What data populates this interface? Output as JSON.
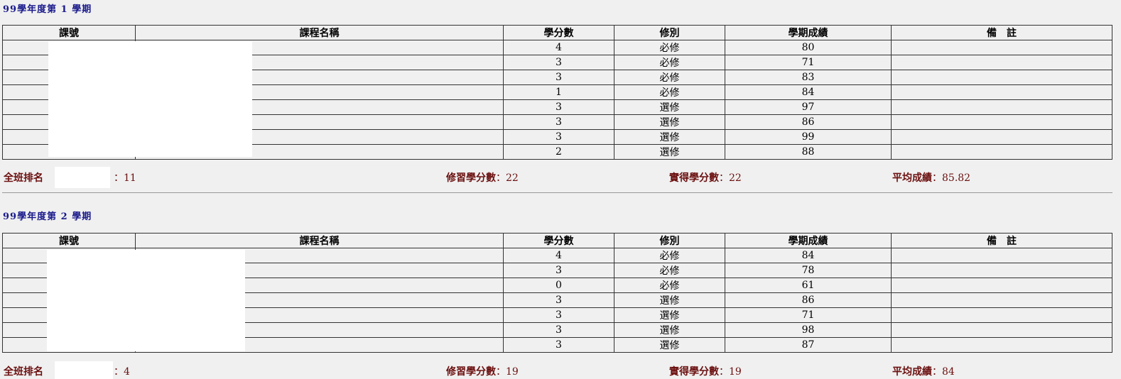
{
  "headers": [
    "課號",
    "課程名稱",
    "學分數",
    "修別",
    "學期成績",
    "備　註"
  ],
  "semesters": [
    {
      "title": "99學年度第 1 學期",
      "rows": [
        {
          "credits": "4",
          "type": "必修",
          "score": "80"
        },
        {
          "credits": "3",
          "type": "必修",
          "score": "71"
        },
        {
          "credits": "3",
          "type": "必修",
          "score": "83"
        },
        {
          "credits": "1",
          "type": "必修",
          "score": "84"
        },
        {
          "credits": "3",
          "type": "選修",
          "score": "97"
        },
        {
          "credits": "3",
          "type": "選修",
          "score": "86"
        },
        {
          "credits": "3",
          "type": "選修",
          "score": "99"
        },
        {
          "credits": "2",
          "type": "選修",
          "score": "88"
        }
      ],
      "rank_label": "全班排名",
      "rank": "：11",
      "taken_label": "修習學分數",
      "taken": "：22",
      "earned_label": "實得學分數",
      "earned": "：22",
      "avg_label": "平均成績",
      "avg": "：85.82"
    },
    {
      "title": "99學年度第 2 學期",
      "rows": [
        {
          "credits": "4",
          "type": "必修",
          "score": "84"
        },
        {
          "credits": "3",
          "type": "必修",
          "score": "78"
        },
        {
          "credits": "0",
          "type": "必修",
          "score": "61"
        },
        {
          "credits": "3",
          "type": "選修",
          "score": "86"
        },
        {
          "credits": "3",
          "type": "選修",
          "score": "71"
        },
        {
          "credits": "3",
          "type": "選修",
          "score": "98"
        },
        {
          "credits": "3",
          "type": "選修",
          "score": "87"
        }
      ],
      "rank_label": "全班排名",
      "rank": "：4",
      "taken_label": "修習學分數",
      "taken": "：19",
      "earned_label": "實得學分數",
      "earned": "：19",
      "avg_label": "平均成績",
      "avg": "：84"
    }
  ]
}
